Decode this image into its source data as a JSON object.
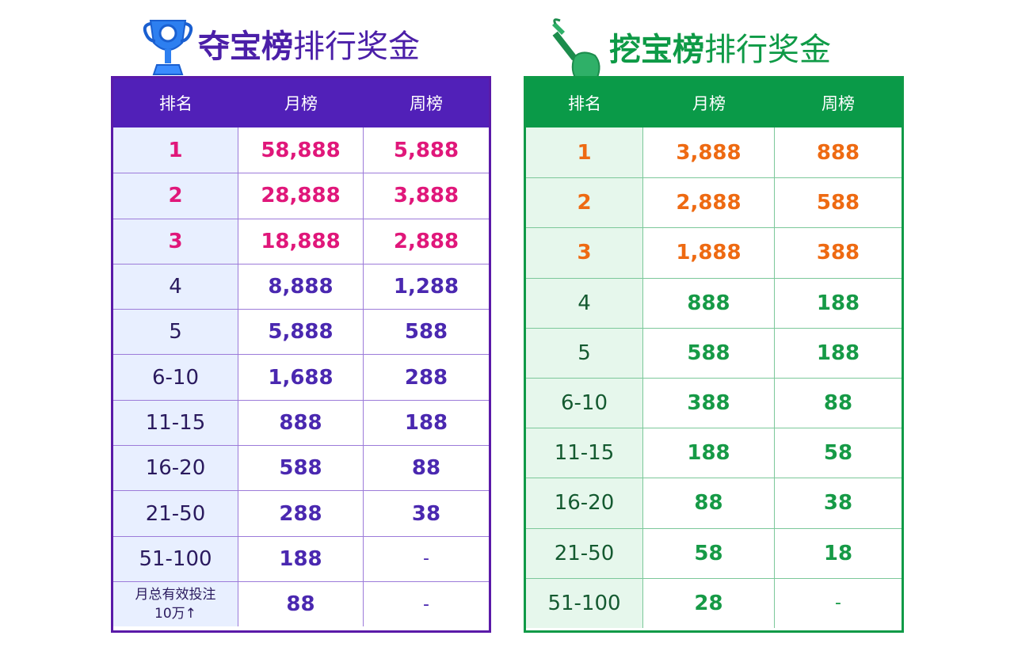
{
  "left": {
    "title_bold": "夺宝榜",
    "title_rest": "排行奖金",
    "headers": [
      "排名",
      "月榜",
      "周榜"
    ],
    "rows": [
      {
        "rank": "1",
        "month": "58,888",
        "week": "5,888"
      },
      {
        "rank": "2",
        "month": "28,888",
        "week": "3,888"
      },
      {
        "rank": "3",
        "month": "18,888",
        "week": "2,888"
      },
      {
        "rank": "4",
        "month": "8,888",
        "week": "1,288"
      },
      {
        "rank": "5",
        "month": "5,888",
        "week": "588"
      },
      {
        "rank": "6-10",
        "month": "1,688",
        "week": "288"
      },
      {
        "rank": "11-15",
        "month": "888",
        "week": "188"
      },
      {
        "rank": "16-20",
        "month": "588",
        "week": "88"
      },
      {
        "rank": "21-50",
        "month": "288",
        "week": "38"
      },
      {
        "rank": "51-100",
        "month": "188",
        "week": "-"
      }
    ],
    "last_row": {
      "rank_line1": "月总有效投注",
      "rank_line2": "10万↑",
      "month": "88",
      "week": "-"
    }
  },
  "right": {
    "title_bold": "挖宝榜",
    "title_rest": "排行奖金",
    "headers": [
      "排名",
      "月榜",
      "周榜"
    ],
    "rows": [
      {
        "rank": "1",
        "month": "3,888",
        "week": "888"
      },
      {
        "rank": "2",
        "month": "2,888",
        "week": "588"
      },
      {
        "rank": "3",
        "month": "1,888",
        "week": "388"
      },
      {
        "rank": "4",
        "month": "888",
        "week": "188"
      },
      {
        "rank": "5",
        "month": "588",
        "week": "188"
      },
      {
        "rank": "6-10",
        "month": "388",
        "week": "88"
      },
      {
        "rank": "11-15",
        "month": "188",
        "week": "58"
      },
      {
        "rank": "16-20",
        "month": "88",
        "week": "38"
      },
      {
        "rank": "21-50",
        "month": "58",
        "week": "18"
      },
      {
        "rank": "51-100",
        "month": "28",
        "week": "-"
      }
    ]
  },
  "colors": {
    "purple": "#5120b8",
    "magenta": "#e0177a",
    "green": "#0a9a48",
    "orange": "#ee6a12"
  },
  "icons": [
    "trophy-icon",
    "shovel-icon"
  ]
}
